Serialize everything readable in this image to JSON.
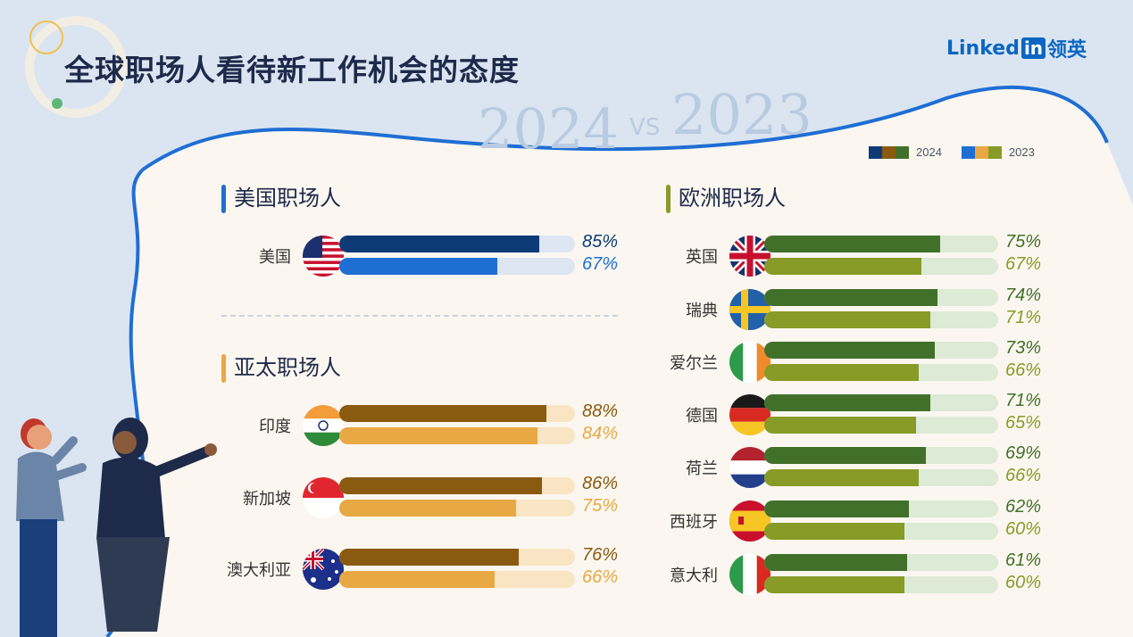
{
  "title": "全球职场人看待新工作机会的态度",
  "brand": {
    "word": "Linked",
    "in": "in",
    "cn": "领英"
  },
  "comparison": {
    "year_a": "2024",
    "vs": "VS",
    "year_b": "2023"
  },
  "legend": [
    {
      "label": "2024",
      "colors": [
        "#0d3b78",
        "#8a5a10",
        "#41702a"
      ]
    },
    {
      "label": "2023",
      "colors": [
        "#1f6ed4",
        "#e8a844",
        "#879b26"
      ]
    }
  ],
  "chart_data": {
    "type": "bar",
    "unit": "%",
    "series_names": [
      "2024",
      "2023"
    ],
    "groups": [
      {
        "name": "美国职场人",
        "accent": "#1f6ed4",
        "colors": {
          "2024": "#0d3b78",
          "2023": "#1f6ed4",
          "track": "#dde6f2",
          "text2024": "#0d3b78",
          "text2023": "#1f6ed4"
        },
        "countries": [
          {
            "name": "美国",
            "flag": "us",
            "v2024": 85,
            "v2023": 67
          }
        ]
      },
      {
        "name": "亚太职场人",
        "accent": "#e8a844",
        "colors": {
          "2024": "#8a5a10",
          "2023": "#e8a844",
          "track": "#f9e4c3",
          "text2024": "#8a5a10",
          "text2023": "#e8a844"
        },
        "countries": [
          {
            "name": "印度",
            "flag": "in",
            "v2024": 88,
            "v2023": 84
          },
          {
            "name": "新加坡",
            "flag": "sg",
            "v2024": 86,
            "v2023": 75
          },
          {
            "name": "澳大利亚",
            "flag": "au",
            "v2024": 76,
            "v2023": 66
          }
        ]
      },
      {
        "name": "欧洲职场人",
        "accent": "#879b26",
        "colors": {
          "2024": "#41702a",
          "2023": "#879b26",
          "track": "#dcead6",
          "text2024": "#41702a",
          "text2023": "#879b26"
        },
        "countries": [
          {
            "name": "英国",
            "flag": "gb",
            "v2024": 75,
            "v2023": 67
          },
          {
            "name": "瑞典",
            "flag": "se",
            "v2024": 74,
            "v2023": 71
          },
          {
            "name": "爱尔兰",
            "flag": "ie",
            "v2024": 73,
            "v2023": 66
          },
          {
            "name": "德国",
            "flag": "de",
            "v2024": 71,
            "v2023": 65
          },
          {
            "name": "荷兰",
            "flag": "nl",
            "v2024": 69,
            "v2023": 66
          },
          {
            "name": "西班牙",
            "flag": "es",
            "v2024": 62,
            "v2023": 60
          },
          {
            "name": "意大利",
            "flag": "it",
            "v2024": 61,
            "v2023": 60
          }
        ]
      }
    ]
  }
}
